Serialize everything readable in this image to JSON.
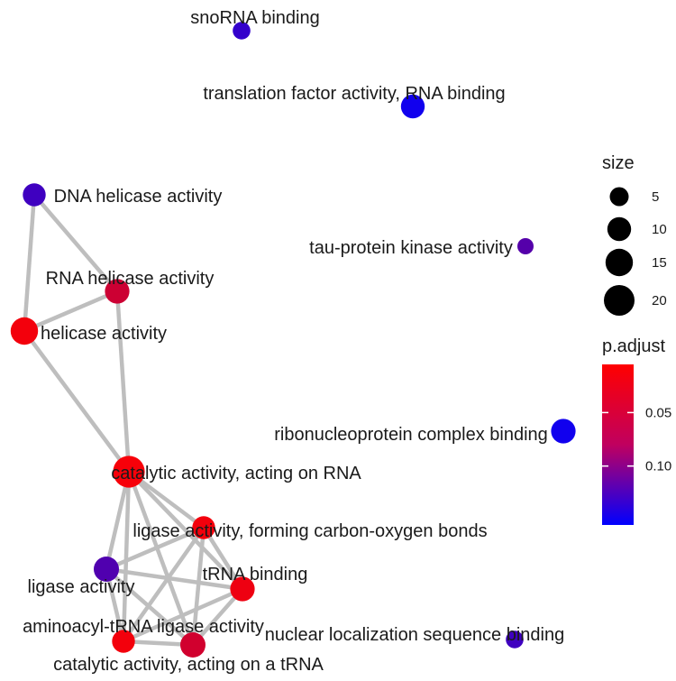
{
  "chart_data": {
    "type": "network",
    "title": "",
    "nodes": [
      {
        "id": "snorna",
        "label": "snoRNA binding",
        "size": 4,
        "p_adjust": 0.125
      },
      {
        "id": "tfa",
        "label": "translation factor activity, RNA binding",
        "size": 10,
        "p_adjust": 0.145
      },
      {
        "id": "dnah",
        "label": "DNA helicase activity",
        "size": 9,
        "p_adjust": 0.118
      },
      {
        "id": "tau",
        "label": "tau-protein kinase activity",
        "size": 3,
        "p_adjust": 0.105
      },
      {
        "id": "rnah",
        "label": "RNA helicase activity",
        "size": 11,
        "p_adjust": 0.035
      },
      {
        "id": "hel",
        "label": "helicase activity",
        "size": 15,
        "p_adjust": 0.012
      },
      {
        "id": "rnp",
        "label": "ribonucleoprotein complex binding",
        "size": 11,
        "p_adjust": 0.145
      },
      {
        "id": "cat_rna",
        "label": "catalytic activity, acting on RNA",
        "size": 22,
        "p_adjust": 0.01
      },
      {
        "id": "lig_co",
        "label": "ligase activity, forming carbon-oxygen bonds",
        "size": 9,
        "p_adjust": 0.012
      },
      {
        "id": "lig",
        "label": "ligase activity",
        "size": 12,
        "p_adjust": 0.108
      },
      {
        "id": "trna",
        "label": "tRNA binding",
        "size": 11,
        "p_adjust": 0.015
      },
      {
        "id": "aa_trna",
        "label": "aminoacyl-tRNA ligase activity",
        "size": 9,
        "p_adjust": 0.012
      },
      {
        "id": "cat_trna",
        "label": "catalytic activity, acting on a tRNA",
        "size": 12,
        "p_adjust": 0.032
      },
      {
        "id": "nls",
        "label": "nuclear localization sequence binding",
        "size": 4,
        "p_adjust": 0.118
      }
    ],
    "edges": [
      [
        "dnah",
        "hel"
      ],
      [
        "dnah",
        "rnah"
      ],
      [
        "rnah",
        "hel"
      ],
      [
        "rnah",
        "cat_rna"
      ],
      [
        "hel",
        "cat_rna"
      ],
      [
        "cat_rna",
        "lig_co"
      ],
      [
        "cat_rna",
        "lig"
      ],
      [
        "cat_rna",
        "trna"
      ],
      [
        "cat_rna",
        "aa_trna"
      ],
      [
        "cat_rna",
        "cat_trna"
      ],
      [
        "lig_co",
        "lig"
      ],
      [
        "lig_co",
        "trna"
      ],
      [
        "lig_co",
        "aa_trna"
      ],
      [
        "lig_co",
        "cat_trna"
      ],
      [
        "lig",
        "trna"
      ],
      [
        "lig",
        "aa_trna"
      ],
      [
        "lig",
        "cat_trna"
      ],
      [
        "trna",
        "aa_trna"
      ],
      [
        "trna",
        "cat_trna"
      ],
      [
        "aa_trna",
        "cat_trna"
      ]
    ],
    "legend_size": {
      "title": "size",
      "values": [
        5,
        10,
        15,
        20
      ]
    },
    "legend_color": {
      "title": "p.adjust",
      "ticks": [
        "0.05",
        "0.10"
      ],
      "low_color": "#FF0000",
      "high_color": "#0000FF",
      "range": [
        0.005,
        0.155
      ]
    },
    "colors": {
      "edge": "#BEBEBE",
      "node_low_p": "#FF0000",
      "node_high_p": "#0000FF",
      "text": "#1A1A1A"
    }
  }
}
